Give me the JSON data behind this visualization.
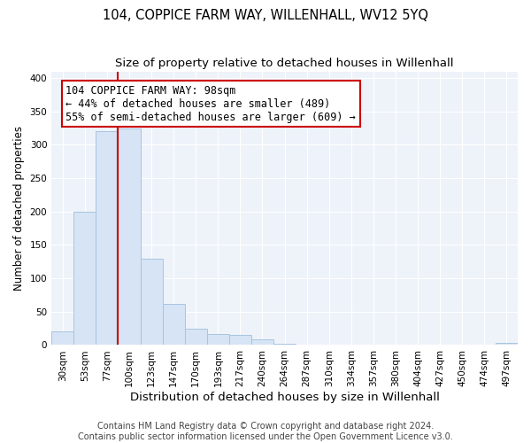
{
  "title": "104, COPPICE FARM WAY, WILLENHALL, WV12 5YQ",
  "subtitle": "Size of property relative to detached houses in Willenhall",
  "xlabel": "Distribution of detached houses by size in Willenhall",
  "ylabel": "Number of detached properties",
  "bar_labels": [
    "30sqm",
    "53sqm",
    "77sqm",
    "100sqm",
    "123sqm",
    "147sqm",
    "170sqm",
    "193sqm",
    "217sqm",
    "240sqm",
    "264sqm",
    "287sqm",
    "310sqm",
    "334sqm",
    "357sqm",
    "380sqm",
    "404sqm",
    "427sqm",
    "450sqm",
    "474sqm",
    "497sqm"
  ],
  "bar_values": [
    20,
    200,
    320,
    325,
    130,
    62,
    25,
    17,
    15,
    8,
    2,
    0,
    0,
    0,
    0,
    0,
    0,
    0,
    0,
    0,
    3
  ],
  "bar_color": "#d6e4f5",
  "bar_edge_color": "#a8c4e0",
  "vline_color": "#cc0000",
  "annotation_text": "104 COPPICE FARM WAY: 98sqm\n← 44% of detached houses are smaller (489)\n55% of semi-detached houses are larger (609) →",
  "annotation_box_color": "#ffffff",
  "annotation_box_edge": "#cc0000",
  "ylim": [
    0,
    410
  ],
  "footer_line1": "Contains HM Land Registry data © Crown copyright and database right 2024.",
  "footer_line2": "Contains public sector information licensed under the Open Government Licence v3.0.",
  "title_fontsize": 10.5,
  "subtitle_fontsize": 9.5,
  "xlabel_fontsize": 9.5,
  "ylabel_fontsize": 8.5,
  "tick_fontsize": 7.5,
  "annotation_fontsize": 8.5,
  "footer_fontsize": 7,
  "background_color": "#ffffff",
  "plot_bg_color": "#eef3fa",
  "grid_color": "#ffffff"
}
